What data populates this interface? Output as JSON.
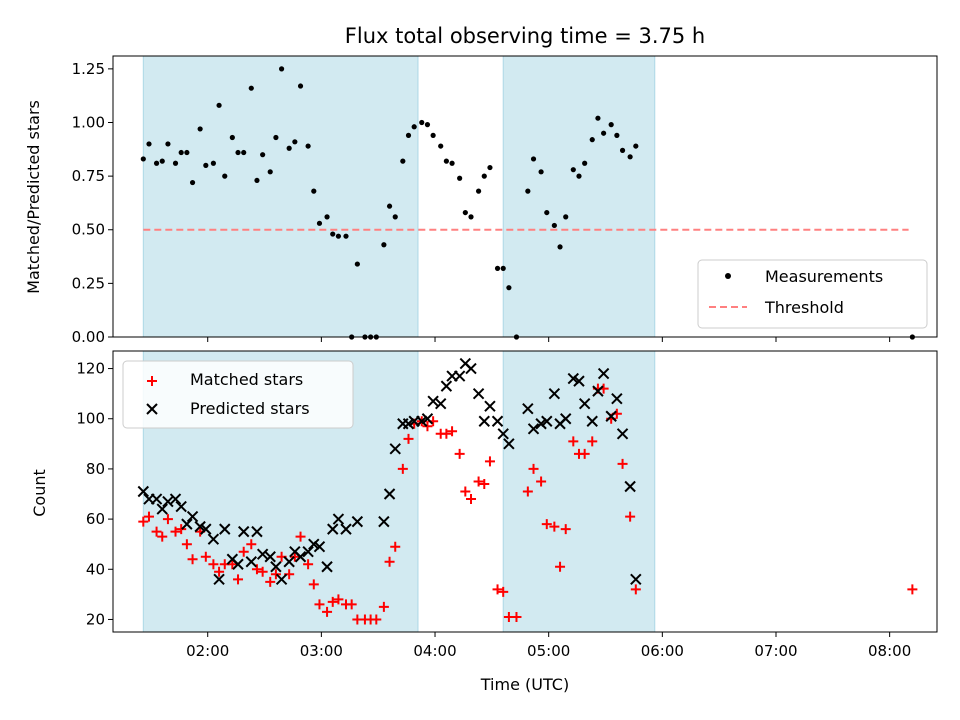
{
  "chart_data": [
    {
      "type": "scatter",
      "title": "Flux total observing time = 3.75 h",
      "xlabel": "",
      "ylabel": "Matched/Predicted stars",
      "xlim": [
        "01:10",
        "08:25"
      ],
      "ylim": [
        0,
        1.31
      ],
      "x_tick_labels": [
        "02:00",
        "03:00",
        "04:00",
        "05:00",
        "06:00",
        "07:00",
        "08:00"
      ],
      "y_ticks": [
        "0.00",
        "0.25",
        "0.50",
        "0.75",
        "1.00",
        "1.25"
      ],
      "legend_position": "lower-right",
      "shaded_intervals": [
        [
          "01:26",
          "03:51"
        ],
        [
          "04:36",
          "05:56"
        ]
      ],
      "colors": {
        "shade": "#add8e6",
        "measurements": "#000000",
        "threshold": "#ff8080"
      },
      "series": [
        {
          "name": "Measurements",
          "marker": "dot",
          "points": [
            [
              "01:26",
              0.83
            ],
            [
              "01:29",
              0.9
            ],
            [
              "01:33",
              0.81
            ],
            [
              "01:36",
              0.82
            ],
            [
              "01:39",
              0.9
            ],
            [
              "01:43",
              0.81
            ],
            [
              "01:46",
              0.86
            ],
            [
              "01:49",
              0.86
            ],
            [
              "01:52",
              0.72
            ],
            [
              "01:56",
              0.97
            ],
            [
              "01:59",
              0.8
            ],
            [
              "02:03",
              0.81
            ],
            [
              "02:06",
              1.08
            ],
            [
              "02:09",
              0.75
            ],
            [
              "02:13",
              0.93
            ],
            [
              "02:16",
              0.86
            ],
            [
              "02:19",
              0.86
            ],
            [
              "02:23",
              1.16
            ],
            [
              "02:26",
              0.73
            ],
            [
              "02:29",
              0.85
            ],
            [
              "02:33",
              0.77
            ],
            [
              "02:36",
              0.93
            ],
            [
              "02:39",
              1.25
            ],
            [
              "02:43",
              0.88
            ],
            [
              "02:46",
              0.91
            ],
            [
              "02:49",
              1.17
            ],
            [
              "02:53",
              0.89
            ],
            [
              "02:56",
              0.68
            ],
            [
              "02:59",
              0.53
            ],
            [
              "03:03",
              0.56
            ],
            [
              "03:06",
              0.48
            ],
            [
              "03:09",
              0.47
            ],
            [
              "03:13",
              0.47
            ],
            [
              "03:16",
              0.0
            ],
            [
              "03:19",
              0.34
            ],
            [
              "03:23",
              0.0
            ],
            [
              "03:26",
              0.0
            ],
            [
              "03:29",
              0.0
            ],
            [
              "03:33",
              0.43
            ],
            [
              "03:36",
              0.61
            ],
            [
              "03:39",
              0.56
            ],
            [
              "03:43",
              0.82
            ],
            [
              "03:46",
              0.94
            ],
            [
              "03:49",
              0.98
            ],
            [
              "03:53",
              1.0
            ],
            [
              "03:56",
              0.99
            ],
            [
              "03:59",
              0.94
            ],
            [
              "04:03",
              0.89
            ],
            [
              "04:06",
              0.82
            ],
            [
              "04:09",
              0.81
            ],
            [
              "04:13",
              0.74
            ],
            [
              "04:16",
              0.58
            ],
            [
              "04:19",
              0.56
            ],
            [
              "04:23",
              0.68
            ],
            [
              "04:26",
              0.75
            ],
            [
              "04:29",
              0.79
            ],
            [
              "04:33",
              0.32
            ],
            [
              "04:36",
              0.32
            ],
            [
              "04:39",
              0.23
            ],
            [
              "04:43",
              0.0
            ],
            [
              "04:49",
              0.68
            ],
            [
              "04:52",
              0.83
            ],
            [
              "04:56",
              0.77
            ],
            [
              "04:59",
              0.58
            ],
            [
              "05:03",
              0.52
            ],
            [
              "05:06",
              0.42
            ],
            [
              "05:09",
              0.56
            ],
            [
              "05:13",
              0.78
            ],
            [
              "05:16",
              0.75
            ],
            [
              "05:19",
              0.81
            ],
            [
              "05:23",
              0.92
            ],
            [
              "05:26",
              1.02
            ],
            [
              "05:29",
              0.95
            ],
            [
              "05:33",
              0.99
            ],
            [
              "05:36",
              0.94
            ],
            [
              "05:39",
              0.87
            ],
            [
              "05:43",
              0.84
            ],
            [
              "05:46",
              0.89
            ],
            [
              "08:12",
              0.0
            ]
          ]
        },
        {
          "name": "Threshold",
          "type": "line",
          "dashed": true,
          "points": [
            [
              "01:26",
              0.5
            ],
            [
              "08:10",
              0.5
            ]
          ]
        }
      ]
    },
    {
      "type": "scatter",
      "title": "",
      "xlabel": "Time (UTC)",
      "ylabel": "Count",
      "xlim": [
        "01:10",
        "08:25"
      ],
      "ylim": [
        15,
        127
      ],
      "x_tick_labels": [
        "02:00",
        "03:00",
        "04:00",
        "05:00",
        "06:00",
        "07:00",
        "08:00"
      ],
      "y_ticks": [
        "20",
        "40",
        "60",
        "80",
        "100",
        "120"
      ],
      "legend_position": "upper-left",
      "shaded_intervals": [
        [
          "01:26",
          "03:51"
        ],
        [
          "04:36",
          "05:56"
        ]
      ],
      "colors": {
        "shade": "#add8e6",
        "matched": "#ff0000",
        "predicted": "#000000"
      },
      "series": [
        {
          "name": "Matched stars",
          "marker": "plus",
          "points": [
            [
              "01:26",
              59
            ],
            [
              "01:29",
              61
            ],
            [
              "01:33",
              55
            ],
            [
              "01:36",
              53
            ],
            [
              "01:39",
              60
            ],
            [
              "01:43",
              55
            ],
            [
              "01:46",
              56
            ],
            [
              "01:49",
              50
            ],
            [
              "01:52",
              44
            ],
            [
              "01:56",
              55
            ],
            [
              "01:59",
              45
            ],
            [
              "02:03",
              42
            ],
            [
              "02:06",
              39
            ],
            [
              "02:09",
              42
            ],
            [
              "02:13",
              42
            ],
            [
              "02:16",
              36
            ],
            [
              "02:19",
              47
            ],
            [
              "02:23",
              50
            ],
            [
              "02:26",
              40
            ],
            [
              "02:29",
              39
            ],
            [
              "02:33",
              35
            ],
            [
              "02:36",
              38
            ],
            [
              "02:39",
              45
            ],
            [
              "02:43",
              38
            ],
            [
              "02:46",
              45
            ],
            [
              "02:49",
              53
            ],
            [
              "02:53",
              42
            ],
            [
              "02:56",
              34
            ],
            [
              "02:59",
              26
            ],
            [
              "03:03",
              23
            ],
            [
              "03:06",
              27
            ],
            [
              "03:09",
              28
            ],
            [
              "03:13",
              26
            ],
            [
              "03:16",
              26
            ],
            [
              "03:19",
              20
            ],
            [
              "03:23",
              20
            ],
            [
              "03:26",
              20
            ],
            [
              "03:29",
              20
            ],
            [
              "03:33",
              25
            ],
            [
              "03:36",
              43
            ],
            [
              "03:39",
              49
            ],
            [
              "03:43",
              80
            ],
            [
              "03:46",
              92
            ],
            [
              "03:49",
              98
            ],
            [
              "03:53",
              99
            ],
            [
              "03:56",
              97
            ],
            [
              "03:59",
              99
            ],
            [
              "04:03",
              94
            ],
            [
              "04:06",
              94
            ],
            [
              "04:09",
              95
            ],
            [
              "04:13",
              86
            ],
            [
              "04:16",
              71
            ],
            [
              "04:19",
              68
            ],
            [
              "04:23",
              75
            ],
            [
              "04:26",
              74
            ],
            [
              "04:29",
              83
            ],
            [
              "04:33",
              32
            ],
            [
              "04:36",
              31
            ],
            [
              "04:39",
              21
            ],
            [
              "04:43",
              21
            ],
            [
              "04:49",
              71
            ],
            [
              "04:52",
              80
            ],
            [
              "04:56",
              75
            ],
            [
              "04:59",
              58
            ],
            [
              "05:03",
              57
            ],
            [
              "05:06",
              41
            ],
            [
              "05:09",
              56
            ],
            [
              "05:13",
              91
            ],
            [
              "05:16",
              86
            ],
            [
              "05:19",
              86
            ],
            [
              "05:23",
              91
            ],
            [
              "05:26",
              112
            ],
            [
              "05:29",
              112
            ],
            [
              "05:33",
              100
            ],
            [
              "05:36",
              102
            ],
            [
              "05:39",
              82
            ],
            [
              "05:43",
              61
            ],
            [
              "05:46",
              32
            ],
            [
              "08:12",
              32
            ]
          ]
        },
        {
          "name": "Predicted stars",
          "marker": "x",
          "points": [
            [
              "01:26",
              71
            ],
            [
              "01:29",
              68
            ],
            [
              "01:33",
              68
            ],
            [
              "01:36",
              64
            ],
            [
              "01:39",
              67
            ],
            [
              "01:43",
              68
            ],
            [
              "01:46",
              65
            ],
            [
              "01:49",
              58
            ],
            [
              "01:52",
              61
            ],
            [
              "01:56",
              57
            ],
            [
              "01:59",
              56
            ],
            [
              "02:03",
              52
            ],
            [
              "02:06",
              36
            ],
            [
              "02:09",
              56
            ],
            [
              "02:13",
              44
            ],
            [
              "02:16",
              42
            ],
            [
              "02:19",
              55
            ],
            [
              "02:23",
              43
            ],
            [
              "02:26",
              55
            ],
            [
              "02:29",
              46
            ],
            [
              "02:33",
              45
            ],
            [
              "02:36",
              41
            ],
            [
              "02:39",
              36
            ],
            [
              "02:43",
              43
            ],
            [
              "02:46",
              47
            ],
            [
              "02:49",
              45
            ],
            [
              "02:53",
              47
            ],
            [
              "02:56",
              50
            ],
            [
              "02:59",
              49
            ],
            [
              "03:03",
              41
            ],
            [
              "03:06",
              56
            ],
            [
              "03:09",
              60
            ],
            [
              "03:13",
              56
            ],
            [
              "03:19",
              59
            ],
            [
              "03:33",
              59
            ],
            [
              "03:36",
              70
            ],
            [
              "03:39",
              88
            ],
            [
              "03:43",
              98
            ],
            [
              "03:46",
              98
            ],
            [
              "03:49",
              99
            ],
            [
              "03:53",
              99
            ],
            [
              "03:56",
              100
            ],
            [
              "03:59",
              107
            ],
            [
              "04:03",
              106
            ],
            [
              "04:06",
              113
            ],
            [
              "04:09",
              117
            ],
            [
              "04:13",
              117
            ],
            [
              "04:16",
              122
            ],
            [
              "04:19",
              120
            ],
            [
              "04:23",
              110
            ],
            [
              "04:26",
              99
            ],
            [
              "04:29",
              105
            ],
            [
              "04:33",
              99
            ],
            [
              "04:36",
              94
            ],
            [
              "04:39",
              90
            ],
            [
              "04:49",
              104
            ],
            [
              "04:52",
              96
            ],
            [
              "04:56",
              98
            ],
            [
              "04:59",
              99
            ],
            [
              "05:03",
              110
            ],
            [
              "05:06",
              98
            ],
            [
              "05:09",
              100
            ],
            [
              "05:13",
              116
            ],
            [
              "05:16",
              115
            ],
            [
              "05:19",
              106
            ],
            [
              "05:23",
              99
            ],
            [
              "05:26",
              111
            ],
            [
              "05:29",
              118
            ],
            [
              "05:33",
              101
            ],
            [
              "05:36",
              108
            ],
            [
              "05:39",
              94
            ],
            [
              "05:43",
              73
            ],
            [
              "05:46",
              36
            ]
          ]
        }
      ]
    }
  ]
}
